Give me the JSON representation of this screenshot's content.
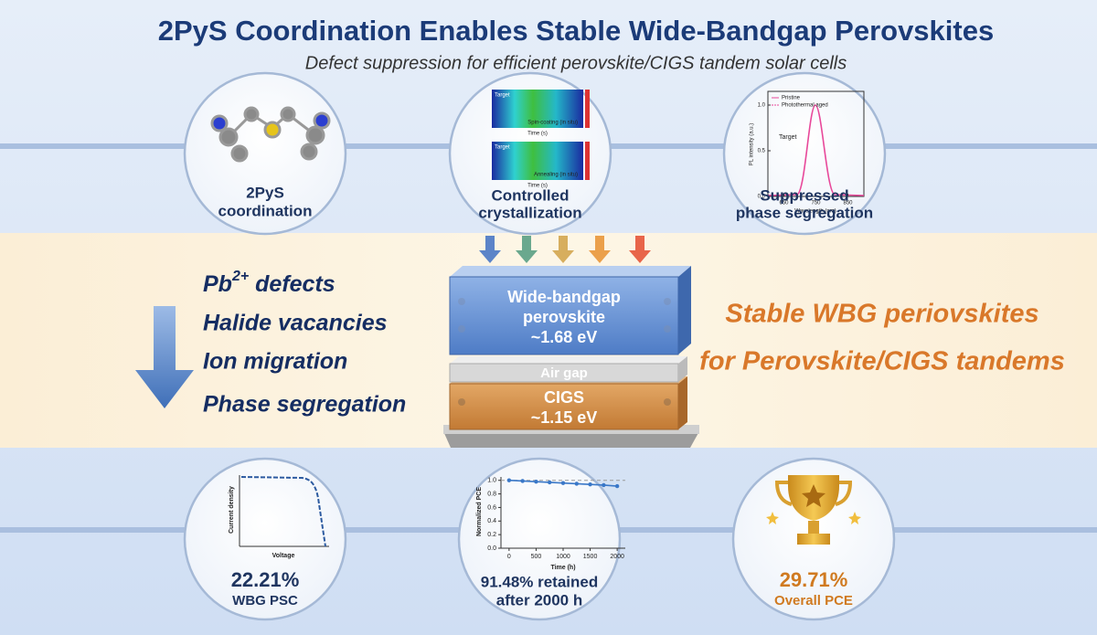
{
  "header": {
    "title": "2PyS Coordination Enables Stable Wide-Bandgap Perovskites",
    "subtitle": "Defect suppression for efficient perovskite/CIGS tandem solar cells"
  },
  "top_panels": [
    {
      "label": [
        "2PyS",
        "coordination"
      ]
    },
    {
      "label": [
        "Controlled",
        "crystallization"
      ],
      "maps": [
        {
          "tag": "Target",
          "caption": "Spin-coating (in situ)",
          "xlabel": "Time (s)"
        },
        {
          "tag": "Target",
          "caption": "Annealing (in situ)",
          "xlabel": "Time (s)"
        }
      ]
    },
    {
      "label": [
        "Suppressed",
        "phase segregation"
      ],
      "chart": {
        "type": "line",
        "legend": [
          "Pristine",
          "Photothermal aged"
        ],
        "annotation": "Target",
        "xlabel": "Wavelength (nm)",
        "ylabel": "PL intensity (a.u.)",
        "xlim": [
          600,
          900
        ],
        "xticks": [
          650,
          750,
          850
        ],
        "ylim": [
          0,
          1.15
        ],
        "yticks": [
          {
            "value": 0,
            "label": "0.0"
          },
          {
            "value": 0.5,
            "label": "0.5"
          },
          {
            "value": 1,
            "label": "1.0"
          }
        ]
      }
    }
  ],
  "defects": [
    {
      "base": "Pb",
      "sup": "2+",
      "tail": " defects"
    },
    "Halide vacancies",
    "Ion migration",
    "Phase segregation"
  ],
  "stack": {
    "top": [
      "Wide-bandgap",
      "perovskite",
      "~1.68 eV"
    ],
    "gap": "Air gap",
    "bottom": [
      "CIGS",
      "~1.15 eV"
    ]
  },
  "outcome": [
    "Stable WBG periovskites",
    "for Perovskite/CIGS tandems"
  ],
  "bottom_panels": [
    {
      "value": "22.21%",
      "label": [
        "WBG PSC"
      ],
      "chart": {
        "xlabel": "Voltage",
        "ylabel": "Current density"
      }
    },
    {
      "value": "91.48% retained",
      "label": [
        "after 2000 h"
      ],
      "chart_data": {
        "type": "line",
        "color": "#3a78c8",
        "xlabel": "Time (h)",
        "ylabel": "Normalized PCE",
        "x": [
          0,
          250,
          500,
          750,
          1000,
          1250,
          1500,
          1750,
          2000
        ],
        "values": [
          1.0,
          0.99,
          0.98,
          0.97,
          0.96,
          0.95,
          0.94,
          0.93,
          0.915
        ],
        "xlim": [
          -150,
          2150
        ],
        "xticks": [
          0,
          500,
          1000,
          1500,
          2000
        ],
        "ylim": [
          0,
          1.05
        ],
        "yticks": [
          {
            "value": 0,
            "label": "0.0"
          },
          {
            "value": 0.2,
            "label": "0.2"
          },
          {
            "value": 0.4,
            "label": "0.4"
          },
          {
            "value": 0.6,
            "label": "0.6"
          },
          {
            "value": 0.8,
            "label": "0.8"
          },
          {
            "value": 1,
            "label": "1.0"
          }
        ]
      }
    },
    {
      "value": "29.71%",
      "label": [
        "Overall PCE"
      ]
    }
  ]
}
